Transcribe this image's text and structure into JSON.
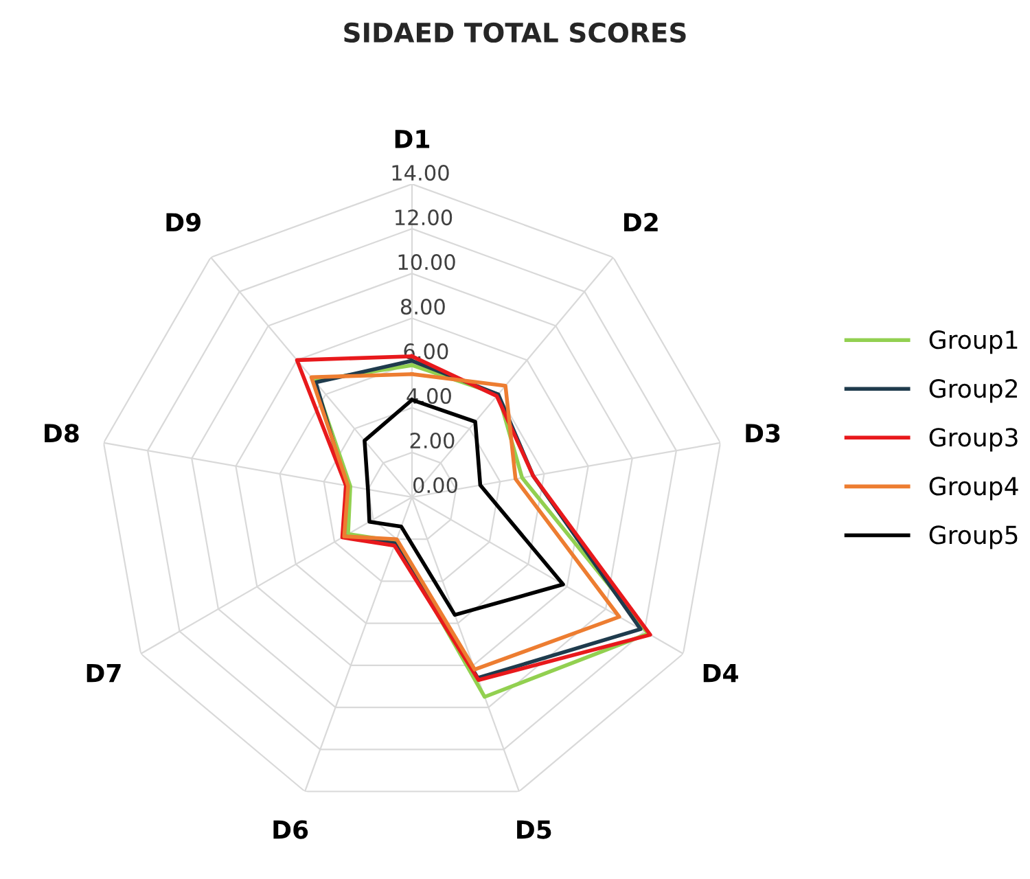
{
  "chart_data": {
    "type": "radar",
    "title": "SIDAED TOTAL SCORES",
    "categories": [
      "D1",
      "D2",
      "D3",
      "D4",
      "D5",
      "D6",
      "D7",
      "D8",
      "D9"
    ],
    "ylim": [
      0,
      14
    ],
    "yticks": [
      {
        "value": 0,
        "label": "0.00"
      },
      {
        "value": 2,
        "label": "2.00"
      },
      {
        "value": 4,
        "label": "4.00"
      },
      {
        "value": 6,
        "label": "6.00"
      },
      {
        "value": 8,
        "label": "8.00"
      },
      {
        "value": 10,
        "label": "10.00"
      },
      {
        "value": 12,
        "label": "12.00"
      },
      {
        "value": 14,
        "label": "14.00"
      }
    ],
    "grid": true,
    "legend": "right",
    "marker": "none",
    "line_style": "solid",
    "series": [
      {
        "name": "Group1",
        "color": "#92d050",
        "values": [
          5.9,
          6.0,
          5.0,
          12.2,
          9.5,
          2.1,
          3.3,
          2.8,
          6.8
        ]
      },
      {
        "name": "Group2",
        "color": "#1f3b4d",
        "values": [
          6.1,
          6.0,
          5.5,
          11.8,
          8.6,
          2.2,
          3.5,
          3.0,
          6.7
        ]
      },
      {
        "name": "Group3",
        "color": "#e8191c",
        "values": [
          6.3,
          5.9,
          5.5,
          12.3,
          8.7,
          2.3,
          3.6,
          3.0,
          8.0
        ]
      },
      {
        "name": "Group4",
        "color": "#ed7d31",
        "values": [
          5.5,
          6.5,
          4.7,
          10.7,
          8.2,
          2.0,
          3.5,
          2.9,
          7.0
        ]
      },
      {
        "name": "Group5",
        "color": "#000000",
        "values": [
          4.35,
          4.4,
          3.1,
          7.8,
          5.6,
          1.4,
          2.2,
          2.0,
          3.3
        ]
      }
    ]
  }
}
